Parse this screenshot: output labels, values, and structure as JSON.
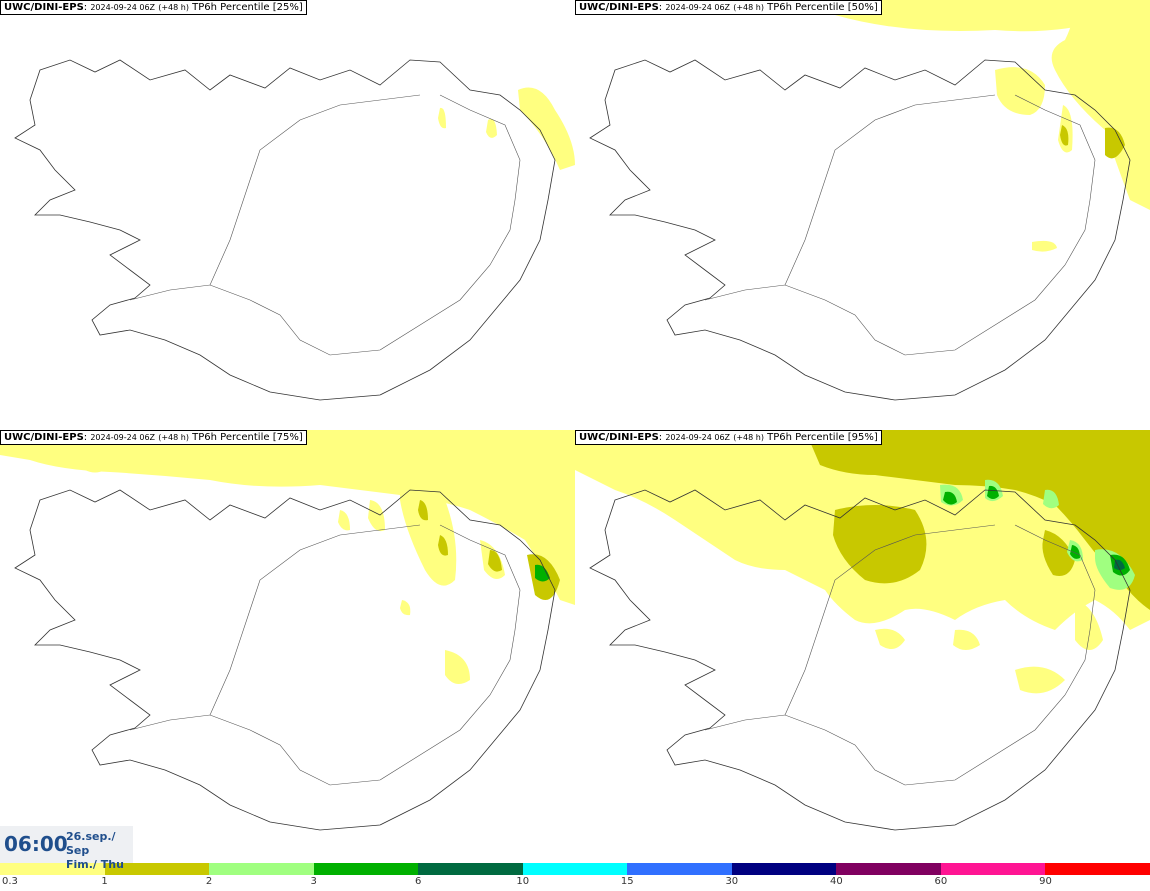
{
  "panels": [
    {
      "model": "UWC/DINI-EPS",
      "run": "2024-09-24 06Z",
      "lead": "(+48 h)",
      "product": "TP6h Percentile [25%]"
    },
    {
      "model": "UWC/DINI-EPS",
      "run": "2024-09-24 06Z",
      "lead": "(+48 h)",
      "product": "TP6h Percentile [50%]"
    },
    {
      "model": "UWC/DINI-EPS",
      "run": "2024-09-24 06Z",
      "lead": "(+48 h)",
      "product": "TP6h Percentile [75%]"
    },
    {
      "model": "UWC/DINI-EPS",
      "run": "2024-09-24 06Z",
      "lead": "(+48 h)",
      "product": "TP6h Percentile [95%]"
    }
  ],
  "valid_time": {
    "time": "06:00",
    "date_line": "26.sep./ Sep",
    "day_line": "Fim./ Thu"
  },
  "legend": {
    "labels": [
      "0.3",
      "1",
      "2",
      "3",
      "6",
      "10",
      "15",
      "30",
      "40",
      "60",
      "90"
    ],
    "colors": [
      "#ffff80",
      "#c8c800",
      "#a0ff80",
      "#00b000",
      "#006a40",
      "#00ffff",
      "#3070ff",
      "#000080",
      "#800060",
      "#ff1493",
      "#ff0000"
    ]
  }
}
